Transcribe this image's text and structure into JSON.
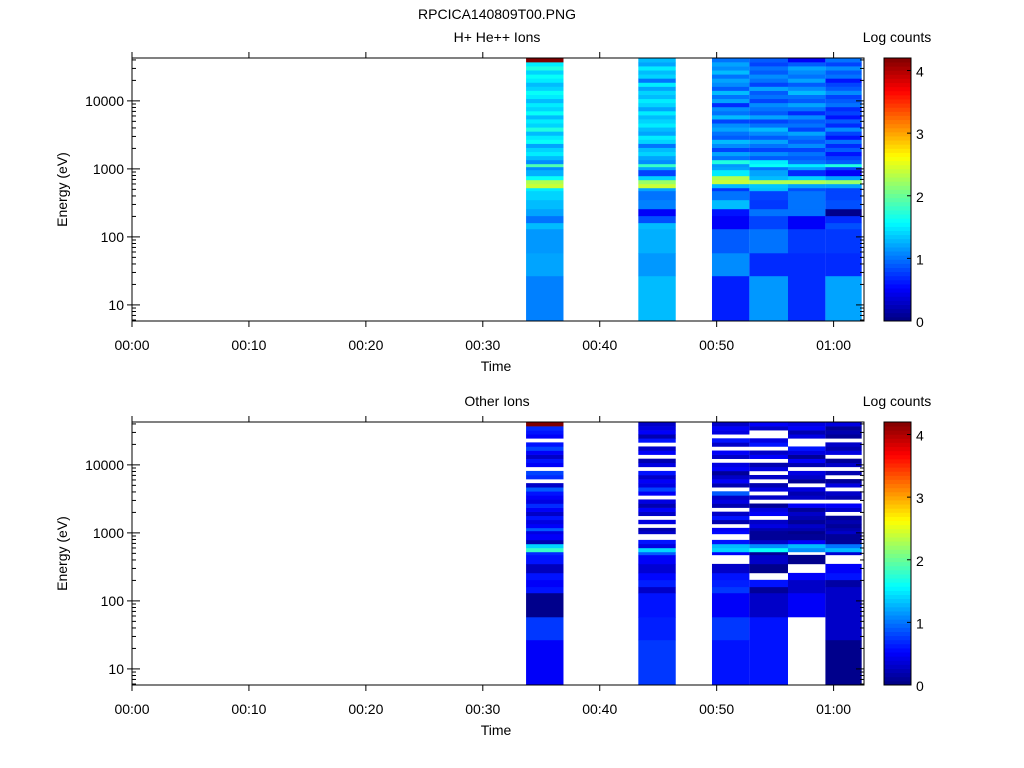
{
  "title": "RPCICA140809T00.PNG",
  "chart_data": [
    {
      "type": "heatmap",
      "title": "H+ He++ Ions",
      "xlabel": "Time",
      "ylabel": "Energy (eV)",
      "colorbar_label": "Log counts",
      "colorbar_ticks": [
        "0",
        "1",
        "2",
        "3",
        "4"
      ],
      "colorbar_range": [
        0,
        4.2
      ],
      "colormap": "jet",
      "xlim_minutes": [
        0,
        62.6
      ],
      "x_tick_labels": [
        "00:00",
        "00:10",
        "00:20",
        "00:30",
        "00:40",
        "00:50",
        "01:00"
      ],
      "ylim": [
        5.8,
        42700
      ],
      "yscale": "log",
      "y_tick_labels": [
        "10",
        "100",
        "1000",
        "10000"
      ],
      "energy_edges_low": [
        5.8,
        26.7,
        58,
        131,
        161,
        204,
        258,
        350,
        475,
        525,
        602,
        689,
        789,
        967,
        1070,
        1185,
        1356
      ],
      "energy_edges_high": {
        "from": 1356,
        "to": 42700,
        "count": 25
      },
      "columns": [
        {
          "t": [
            33.7,
            36.9
          ],
          "values": [
            1.05,
            1.2,
            1.15,
            1.3,
            1.0,
            1.2,
            1.3,
            1.4,
            1.5,
            2.4,
            2.3,
            1.6,
            1.25,
            1.1,
            1.9,
            1.1,
            1.3,
            1.5,
            1.4,
            1.2,
            1.6,
            1.5,
            1.3,
            1.7,
            1.4,
            1.5,
            1.3,
            1.6,
            1.4,
            1.5,
            1.3,
            1.5,
            1.6,
            1.4,
            1.3,
            1.5,
            1.6,
            1.4,
            1.7,
            1.5,
            4.2
          ]
        },
        {
          "t": [
            43.3,
            46.5
          ],
          "values": [
            1.3,
            1.15,
            1.25,
            1.3,
            0.85,
            0.5,
            1.05,
            1.0,
            1.2,
            2.4,
            2.2,
            1.4,
            0.8,
            1.2,
            1.8,
            1.1,
            1.2,
            1.4,
            1.3,
            1.0,
            1.4,
            1.5,
            1.2,
            1.3,
            1.5,
            1.4,
            1.3,
            1.5,
            1.2,
            1.4,
            1.5,
            1.3,
            1.4,
            1.2,
            1.5,
            1.0,
            1.4,
            1.3,
            1.5,
            1.2,
            1.3
          ]
        },
        {
          "t": [
            49.6,
            52.8
          ],
          "values": [
            0.65,
            1.1,
            0.9,
            0.5,
            0.5,
            0.6,
            1.3,
            1.0,
            0.75,
            1.3,
            2.4,
            2.3,
            1.5,
            1.2,
            1.15,
            1.7,
            1.0,
            1.2,
            0.8,
            1.1,
            1.3,
            0.9,
            1.0,
            1.2,
            1.1,
            0.8,
            1.3,
            1.0,
            1.1,
            0.7,
            1.2,
            1.0,
            1.3,
            0.9,
            1.1,
            1.2,
            1.0,
            1.3,
            1.1,
            1.2,
            1.0
          ]
        },
        {
          "t": [
            52.8,
            56.1
          ],
          "values": [
            1.15,
            0.7,
            1.0,
            0.8,
            0.8,
            1.0,
            0.75,
            0.8,
            1.3,
            1.35,
            2.3,
            1.3,
            1.2,
            1.0,
            1.6,
            1.5,
            0.9,
            1.1,
            0.8,
            1.0,
            1.2,
            0.9,
            1.1,
            1.3,
            1.0,
            0.8,
            1.2,
            0.9,
            1.0,
            1.1,
            0.8,
            1.0,
            0.9,
            1.2,
            0.8,
            1.0,
            1.1,
            0.9,
            1.0,
            0.8,
            0.9
          ]
        },
        {
          "t": [
            56.1,
            59.3
          ],
          "values": [
            0.7,
            0.7,
            0.75,
            0.5,
            0.5,
            1.0,
            1.0,
            1.0,
            0.85,
            1.2,
            2.3,
            1.4,
            0.7,
            1.2,
            1.5,
            1.0,
            0.9,
            1.0,
            0.8,
            1.1,
            0.9,
            1.0,
            1.2,
            0.8,
            1.0,
            0.9,
            1.1,
            0.7,
            1.0,
            1.2,
            0.9,
            1.0,
            1.3,
            1.1,
            0.9,
            1.2,
            1.0,
            1.1,
            1.2,
            0.9,
            0.5
          ]
        },
        {
          "t": [
            59.3,
            62.4
          ],
          "values": [
            1.2,
            0.7,
            0.75,
            0.85,
            0.7,
            0.05,
            0.85,
            0.8,
            0.8,
            1.2,
            2.2,
            1.2,
            0.5,
            0.8,
            1.7,
            0.9,
            0.8,
            0.6,
            0.9,
            0.7,
            1.0,
            0.6,
            0.8,
            1.1,
            0.7,
            0.9,
            0.6,
            0.8,
            0.7,
            1.0,
            0.9,
            0.8,
            1.1,
            0.9,
            0.8,
            0.6,
            1.0,
            0.9,
            1.1,
            0.8,
            1.0
          ]
        }
      ]
    },
    {
      "type": "heatmap",
      "title": "Other Ions",
      "xlabel": "Time",
      "ylabel": "Energy (eV)",
      "colorbar_label": "Log counts",
      "colorbar_ticks": [
        "0",
        "1",
        "2",
        "3",
        "4"
      ],
      "colorbar_range": [
        0,
        4.2
      ],
      "colormap": "jet",
      "xlim_minutes": [
        0,
        62.6
      ],
      "x_tick_labels": [
        "00:00",
        "00:10",
        "00:20",
        "00:30",
        "00:40",
        "00:50",
        "01:00"
      ],
      "ylim": [
        5.8,
        42700
      ],
      "yscale": "log",
      "y_tick_labels": [
        "10",
        "100",
        "1000",
        "10000"
      ],
      "energy_edges_low": [
        5.8,
        26.7,
        58,
        131,
        161,
        204,
        258,
        350,
        475,
        525,
        602,
        689,
        789,
        967,
        1070,
        1185,
        1356
      ],
      "energy_edges_high": {
        "from": 1356,
        "to": 42700,
        "count": 25
      },
      "columns": [
        {
          "t": [
            33.7,
            36.9
          ],
          "values": [
            0.5,
            0.75,
            0.05,
            0.6,
            0.5,
            0.6,
            0.25,
            0.6,
            0.7,
            1.8,
            1.4,
            0.2,
            0.5,
            0.4,
            0.9,
            0.5,
            0.4,
            0.6,
            0.3,
            0.5,
            0.7,
            0.4,
            0.5,
            0.6,
            0.9,
            0.3,
            null,
            0.7,
            0.8,
            null,
            0.5,
            0.6,
            0.3,
            0.5,
            0.8,
            0.6,
            null,
            0.5,
            0.6,
            0.7,
            4.2
          ]
        },
        {
          "t": [
            43.3,
            46.5
          ],
          "values": [
            0.75,
            0.65,
            0.6,
            0.3,
            0.65,
            0.55,
            0.35,
            0.5,
            0.9,
            1.4,
            0.4,
            0.6,
            null,
            0.3,
            0.2,
            null,
            0.4,
            null,
            0.3,
            0.5,
            0.2,
            0.4,
            null,
            0.5,
            0.8,
            0.4,
            0.5,
            0.3,
            0.6,
            null,
            0.4,
            0.2,
            null,
            0.5,
            0.3,
            null,
            0.6,
            0.2,
            0.5,
            0.4,
            0.3
          ]
        },
        {
          "t": [
            49.6,
            52.8
          ],
          "values": [
            0.6,
            0.75,
            0.5,
            0.75,
            0.65,
            0.6,
            0.3,
            null,
            0.5,
            1.4,
            1.3,
            0.6,
            null,
            0.55,
            0.5,
            null,
            0.2,
            0.6,
            0.3,
            null,
            0.2,
            0.4,
            0.3,
            0.9,
            null,
            0.2,
            0.5,
            0.3,
            0.1,
            0.5,
            0.4,
            null,
            0.3,
            0.5,
            null,
            0.3,
            0.6,
            null,
            0.4,
            0.5,
            0.3
          ]
        },
        {
          "t": [
            52.8,
            56.1
          ],
          "values": [
            0.6,
            0.6,
            0.3,
            0.1,
            0.6,
            null,
            0.05,
            0.3,
            0.1,
            1.6,
            1.1,
            0.3,
            0.1,
            0.1,
            0.2,
            0.4,
            0.3,
            null,
            0.5,
            0.4,
            0.1,
            null,
            0.3,
            null,
            0.4,
            0.2,
            null,
            0.3,
            null,
            0.4,
            0.2,
            null,
            0.5,
            0.3,
            null,
            0.6,
            0.4,
            null,
            null,
            0.3,
            0.5
          ]
        },
        {
          "t": [
            56.1,
            59.3
          ],
          "values": [
            null,
            null,
            0.5,
            0.3,
            0.3,
            0.5,
            null,
            0.05,
            null,
            1.1,
            1.3,
            0.5,
            0.1,
            0.05,
            0.2,
            0.3,
            0.1,
            0.2,
            0.3,
            0.1,
            0.5,
            null,
            0.3,
            0.2,
            0.4,
            null,
            0.1,
            0.3,
            0.4,
            null,
            0.2,
            0.5,
            0.1,
            0.4,
            0.6,
            null,
            null,
            0.4,
            0.2,
            0.5,
            0.4
          ]
        },
        {
          "t": [
            59.3,
            62.4
          ],
          "values": [
            0.05,
            0.3,
            0.3,
            0.3,
            0.15,
            0.6,
            0.5,
            null,
            0.35,
            1.3,
            1.0,
            0.1,
            0.1,
            0.3,
            0.2,
            0.1,
            0.2,
            0.1,
            null,
            0.3,
            0.5,
            null,
            0.2,
            0.3,
            null,
            0.4,
            0.1,
            null,
            0.2,
            null,
            0.3,
            0.1,
            null,
            0.4,
            0.2,
            0.3,
            null,
            0.1,
            0.2,
            0.1,
            0.4
          ]
        }
      ]
    }
  ]
}
